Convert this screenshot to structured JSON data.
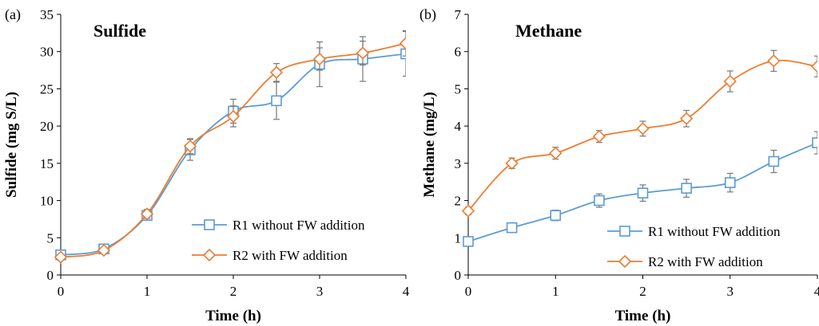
{
  "colors": {
    "series1": "#5b9bd5",
    "series2": "#ed7d31"
  },
  "chart_data": [
    {
      "type": "line",
      "panel_label": "(a)",
      "title": "Sulfide",
      "xlabel": "Time (h)",
      "ylabel": "Sulfide (mg S/L)",
      "xlim": [
        0,
        4
      ],
      "ylim": [
        0,
        35
      ],
      "xticks": [
        0,
        1,
        2,
        3,
        4
      ],
      "yticks": [
        0,
        5,
        10,
        15,
        20,
        25,
        30,
        35
      ],
      "legend_position": "bottom-right",
      "x": [
        0,
        0.5,
        1,
        1.5,
        2,
        2.5,
        3,
        3.5,
        4
      ],
      "series": [
        {
          "name": "R1 without FW addition",
          "marker": "square",
          "values": [
            2.7,
            3.5,
            8.0,
            16.8,
            22.0,
            23.4,
            28.3,
            29.0,
            29.7
          ],
          "errors": [
            0.4,
            0.4,
            0.6,
            1.4,
            1.6,
            2.5,
            3.0,
            3.0,
            3.0
          ]
        },
        {
          "name": "R2 with FW addition",
          "marker": "diamond",
          "values": [
            2.4,
            3.3,
            8.2,
            17.3,
            21.3,
            27.2,
            29.0,
            29.8,
            31.1
          ],
          "errors": [
            0.3,
            0.4,
            0.6,
            1.0,
            1.4,
            1.2,
            1.5,
            1.6,
            1.7
          ]
        }
      ]
    },
    {
      "type": "line",
      "panel_label": "(b)",
      "title": "Methane",
      "xlabel": "Time (h)",
      "ylabel": "Methane (mg/L)",
      "xlim": [
        0,
        4
      ],
      "ylim": [
        0,
        7
      ],
      "xticks": [
        0,
        1,
        2,
        3,
        4
      ],
      "yticks": [
        0,
        1,
        2,
        3,
        4,
        5,
        6,
        7
      ],
      "legend_position": "bottom-right",
      "x": [
        0,
        0.5,
        1,
        1.5,
        2,
        2.5,
        3,
        3.5,
        4
      ],
      "series": [
        {
          "name": "R1 without FW addition",
          "marker": "square",
          "values": [
            0.9,
            1.27,
            1.6,
            2.0,
            2.2,
            2.33,
            2.48,
            3.05,
            3.55
          ],
          "errors": [
            0.08,
            0.12,
            0.14,
            0.18,
            0.22,
            0.24,
            0.25,
            0.3,
            0.3
          ]
        },
        {
          "name": "R2 with FW addition",
          "marker": "diamond",
          "values": [
            1.72,
            3.0,
            3.27,
            3.72,
            3.93,
            4.2,
            5.2,
            5.75,
            5.6
          ],
          "errors": [
            0.1,
            0.14,
            0.16,
            0.16,
            0.2,
            0.22,
            0.28,
            0.28,
            0.28
          ]
        }
      ]
    }
  ]
}
